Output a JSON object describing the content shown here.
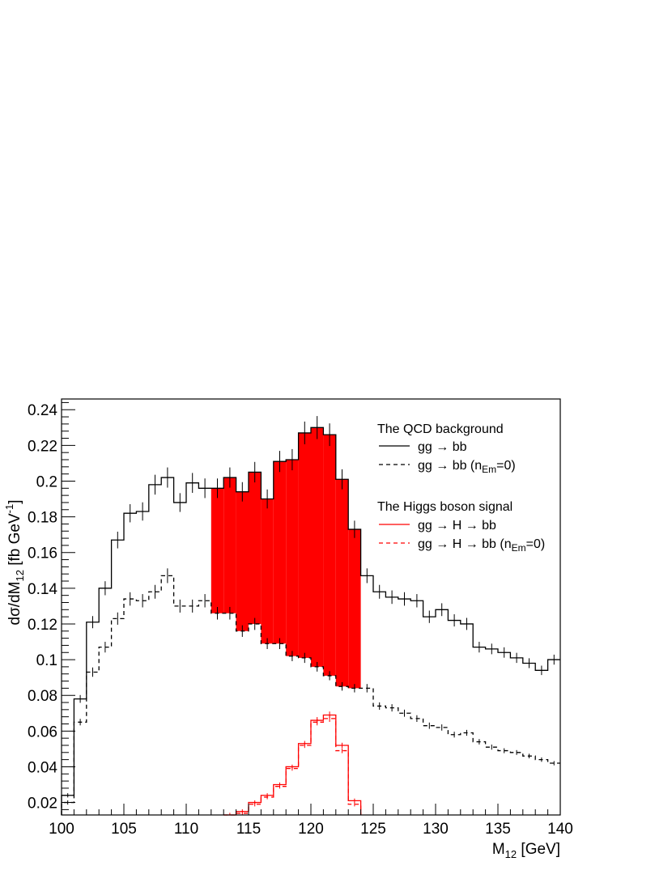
{
  "chart_data": {
    "type": "line",
    "xlabel": "M",
    "xlabel_sub": "12",
    "xlabel_unit": " [GeV]",
    "ylabel": "dσ/dM",
    "ylabel_sub": "12",
    "ylabel_unit": " [fb GeV",
    "ylabel_sup": "-1",
    "ylabel_end": "]",
    "xlim": [
      100,
      140
    ],
    "ylim": [
      0.013,
      0.246
    ],
    "x_ticks": [
      "100",
      "105",
      "110",
      "115",
      "120",
      "125",
      "130",
      "135",
      "140"
    ],
    "y_ticks": [
      "0.02",
      "0.04",
      "0.06",
      "0.08",
      "0.1",
      "0.12",
      "0.14",
      "0.16",
      "0.18",
      "0.2",
      "0.22",
      "0.24"
    ],
    "grid": false,
    "legend_position": "top-right",
    "fill_between": {
      "series_upper": 0,
      "series_lower": 1,
      "x_range": [
        112,
        124
      ],
      "color": "#ff0000"
    },
    "bin_edges": [
      100,
      101,
      102,
      103,
      104,
      105,
      106,
      107,
      108,
      109,
      110,
      111,
      112,
      113,
      114,
      115,
      116,
      117,
      118,
      119,
      120,
      121,
      122,
      123,
      124,
      125,
      126,
      127,
      128,
      129,
      130,
      131,
      132,
      133,
      134,
      135,
      136,
      137,
      138,
      139,
      140
    ],
    "series": [
      {
        "name": "gg → bb",
        "color": "#000000",
        "dash": "solid",
        "values": [
          0.024,
          0.078,
          0.121,
          0.14,
          0.167,
          0.182,
          0.183,
          0.198,
          0.202,
          0.188,
          0.199,
          0.196,
          0.196,
          0.202,
          0.194,
          0.205,
          0.19,
          0.211,
          0.212,
          0.227,
          0.23,
          0.226,
          0.201,
          0.173,
          0.147,
          0.138,
          0.135,
          0.134,
          0.133,
          0.124,
          0.128,
          0.122,
          0.12,
          0.107,
          0.106,
          0.104,
          0.101,
          0.098,
          0.094,
          0.1
        ]
      },
      {
        "name": "gg → bb (n_Em=0)",
        "color": "#000000",
        "dash": "dashed",
        "values": [
          0.02,
          0.065,
          0.093,
          0.107,
          0.123,
          0.134,
          0.133,
          0.138,
          0.147,
          0.13,
          0.13,
          0.133,
          0.126,
          0.126,
          0.116,
          0.12,
          0.109,
          0.109,
          0.102,
          0.101,
          0.096,
          0.091,
          0.085,
          0.084,
          0.084,
          0.074,
          0.073,
          0.07,
          0.067,
          0.063,
          0.062,
          0.058,
          0.059,
          0.054,
          0.051,
          0.049,
          0.048,
          0.046,
          0.044,
          0.042
        ]
      },
      {
        "name": "gg → H → bb",
        "color": "#ff0000",
        "dash": "solid",
        "values": [
          null,
          null,
          null,
          null,
          null,
          null,
          null,
          null,
          null,
          null,
          null,
          null,
          null,
          0.013,
          0.015,
          0.02,
          0.024,
          0.03,
          0.04,
          0.053,
          0.066,
          0.069,
          0.052,
          0.021,
          null,
          null,
          null,
          null,
          null,
          null,
          null,
          null,
          null,
          null,
          null,
          null,
          null,
          null,
          null,
          null
        ]
      },
      {
        "name": "gg → H → bb (n_Em=0)",
        "color": "#ff0000",
        "dash": "dashed",
        "values": [
          null,
          null,
          null,
          null,
          null,
          null,
          null,
          null,
          null,
          null,
          null,
          null,
          null,
          0.012,
          0.014,
          0.019,
          0.023,
          0.029,
          0.039,
          0.052,
          0.065,
          0.067,
          0.049,
          0.019,
          null,
          null,
          null,
          null,
          null,
          null,
          null,
          null,
          null,
          null,
          null,
          null,
          null,
          null,
          null,
          null
        ]
      }
    ],
    "legend": {
      "group1_title": "The QCD background",
      "group1_item1": "gg → bb",
      "group1_item2_main": "gg → bb (n",
      "group1_item2_sub": "Em",
      "group1_item2_end": "=0)",
      "group2_title": "The Higgs boson signal",
      "group2_item1": "gg → H → bb",
      "group2_item2_main": "gg → H → bb (n",
      "group2_item2_sub": "Em",
      "group2_item2_end": "=0)"
    }
  }
}
